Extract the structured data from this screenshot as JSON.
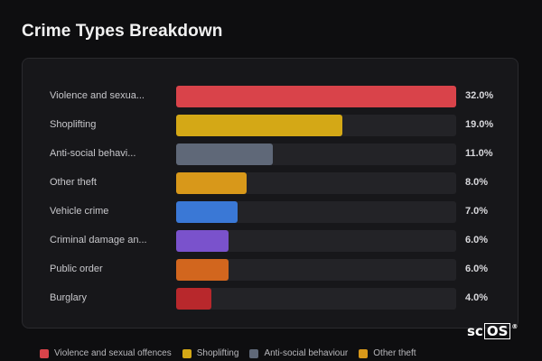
{
  "title": "Crime Types Breakdown",
  "chart_data": {
    "type": "bar",
    "orientation": "horizontal",
    "title": "Crime Types Breakdown",
    "categories": [
      "Violence and sexua...",
      "Shoplifting",
      "Anti-social behavi...",
      "Other theft",
      "Vehicle crime",
      "Criminal damage an...",
      "Public order",
      "Burglary"
    ],
    "values": [
      32.0,
      19.0,
      11.0,
      8.0,
      7.0,
      6.0,
      6.0,
      4.0
    ],
    "value_labels": [
      "32.0%",
      "19.0%",
      "11.0%",
      "8.0%",
      "7.0%",
      "6.0%",
      "6.0%",
      "4.0%"
    ],
    "colors": [
      "#d9434a",
      "#d4a816",
      "#5f6878",
      "#d8981a",
      "#3a78d6",
      "#7a52cc",
      "#d2661e",
      "#b8282c"
    ],
    "xlim": [
      0,
      32
    ],
    "grid": false,
    "legend": "bottom",
    "legend_entries": [
      {
        "label": "Violence and sexual offences",
        "color": "#d9434a"
      },
      {
        "label": "Shoplifting",
        "color": "#d4a816"
      },
      {
        "label": "Anti-social behaviour",
        "color": "#5f6878"
      },
      {
        "label": "Other theft",
        "color": "#d8981a"
      }
    ]
  },
  "logo": {
    "prefix": "sc",
    "boxed": "OS",
    "mark": "®"
  }
}
